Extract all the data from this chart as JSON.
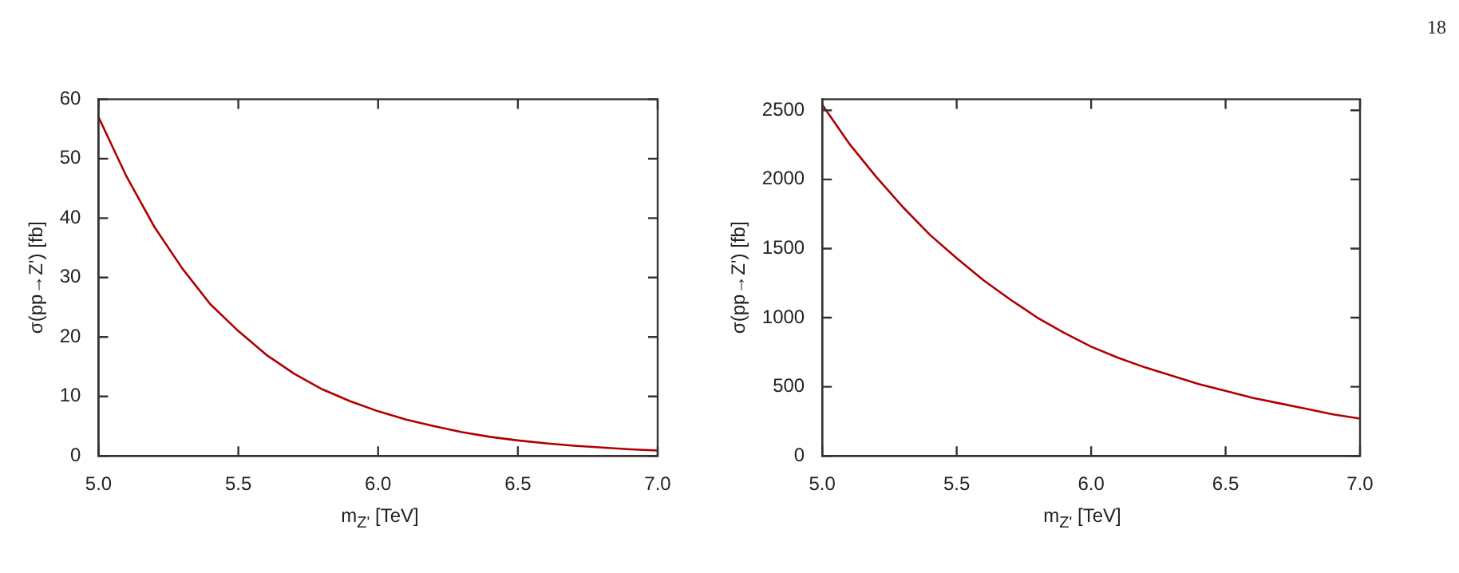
{
  "chart_data": [
    {
      "type": "line",
      "xlabel": "m$_{Z'}$ [TeV]",
      "ylabel": "σ(pp→Z') [fb]",
      "x": [
        5.0,
        5.1,
        5.2,
        5.3,
        5.4,
        5.5,
        5.6,
        5.7,
        5.8,
        5.9,
        6.0,
        6.1,
        6.2,
        6.3,
        6.4,
        6.5,
        6.6,
        6.7,
        6.8,
        6.9,
        7.0
      ],
      "series": [
        {
          "color": "#b00000",
          "values": [
            57,
            47,
            38.5,
            31.5,
            25.5,
            21,
            17,
            13.8,
            11.2,
            9.2,
            7.5,
            6.1,
            5.0,
            4.0,
            3.2,
            2.6,
            2.1,
            1.7,
            1.4,
            1.1,
            0.9
          ]
        }
      ],
      "xlim": [
        5,
        7
      ],
      "xticks": [
        {
          "value": 5,
          "label": "5.0"
        },
        {
          "value": 5.5,
          "label": "5.5"
        },
        {
          "value": 6,
          "label": "6.0"
        },
        {
          "value": 6.5,
          "label": "6.5"
        },
        {
          "value": 7,
          "label": "7.0"
        }
      ],
      "ylim": [
        0,
        60
      ],
      "yticks": [
        0,
        10,
        20,
        30,
        40,
        50,
        60
      ]
    },
    {
      "type": "line",
      "xlabel": "m$_{Z'}$ [TeV]",
      "ylabel": "σ(pp→Z') [fb]",
      "annotations": [
        "18"
      ],
      "x": [
        5.0,
        5.1,
        5.2,
        5.3,
        5.4,
        5.5,
        5.6,
        5.7,
        5.8,
        5.9,
        6.0,
        6.1,
        6.2,
        6.3,
        6.4,
        6.5,
        6.6,
        6.7,
        6.8,
        6.9,
        7.0
      ],
      "series": [
        {
          "color": "#b00000",
          "values": [
            2540,
            2260,
            2020,
            1800,
            1600,
            1430,
            1270,
            1130,
            1000,
            890,
            790,
            710,
            640,
            580,
            520,
            470,
            420,
            380,
            340,
            300,
            270
          ]
        }
      ],
      "xlim": [
        5,
        7
      ],
      "xticks": [
        {
          "value": 5,
          "label": "5.0"
        },
        {
          "value": 5.5,
          "label": "5.5"
        },
        {
          "value": 6,
          "label": "6.0"
        },
        {
          "value": 6.5,
          "label": "6.5"
        },
        {
          "value": 7,
          "label": "7.0"
        }
      ],
      "ylim": [
        0,
        2580
      ],
      "yticks": [
        0,
        500,
        1000,
        1500,
        2000,
        2500
      ]
    }
  ]
}
